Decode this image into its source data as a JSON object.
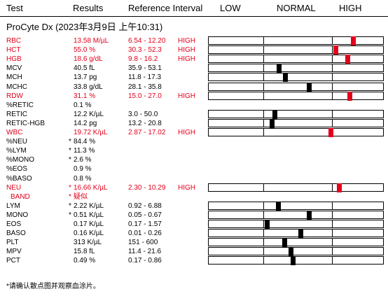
{
  "header": {
    "test": "Test",
    "results": "Results",
    "reference": "Reference Interval",
    "low": "LOW",
    "normal": "NORMAL",
    "high": "HIGH"
  },
  "title": "ProCyte Dx (2023年3月9日 上午10:31)",
  "rows": [
    {
      "test": "RBC",
      "star": "",
      "result": "13.58 M/µL",
      "ref": "6.54 - 12.20",
      "flag": "HIGH",
      "status": "high",
      "marker": 0.82
    },
    {
      "test": "HCT",
      "star": "",
      "result": "55.0 %",
      "ref": "30.3 - 52.3",
      "flag": "HIGH",
      "status": "high",
      "marker": 0.72
    },
    {
      "test": "HGB",
      "star": "",
      "result": "18.6 g/dL",
      "ref": "9.8 - 16.2",
      "flag": "HIGH",
      "status": "high",
      "marker": 0.79
    },
    {
      "test": "MCV",
      "star": "",
      "result": "40.5 fL",
      "ref": "35.9 - 53.1",
      "flag": "",
      "status": "normal",
      "marker": 0.4
    },
    {
      "test": "MCH",
      "star": "",
      "result": "13.7 pg",
      "ref": "11.8 - 17.3",
      "flag": "",
      "status": "normal",
      "marker": 0.435
    },
    {
      "test": "MCHC",
      "star": "",
      "result": "33.8 g/dL",
      "ref": "28.1 - 35.8",
      "flag": "",
      "status": "normal",
      "marker": 0.57
    },
    {
      "test": "RDW",
      "star": "",
      "result": "31.1 %",
      "ref": "15.0 - 27.0",
      "flag": "HIGH",
      "status": "high",
      "marker": 0.8
    },
    {
      "test": "%RETIC",
      "star": "",
      "result": "0.1 %",
      "ref": "",
      "flag": "",
      "status": "none",
      "marker": null
    },
    {
      "test": "RETIC",
      "star": "",
      "result": "12.2 K/µL",
      "ref": "3.0 - 50.0",
      "flag": "",
      "status": "normal",
      "marker": 0.375
    },
    {
      "test": "RETIC-HGB",
      "star": "",
      "result": "14.2 pg",
      "ref": "13.2 - 20.8",
      "flag": "",
      "status": "normal",
      "marker": 0.36
    },
    {
      "test": "WBC",
      "star": "",
      "result": "19.72 K/µL",
      "ref": "2.87 - 17.02",
      "flag": "HIGH",
      "status": "high",
      "marker": 0.695
    },
    {
      "test": "%NEU",
      "star": "*",
      "result": "84.4 %",
      "ref": "",
      "flag": "",
      "status": "none",
      "marker": null
    },
    {
      "test": "%LYM",
      "star": "*",
      "result": "11.3 %",
      "ref": "",
      "flag": "",
      "status": "none",
      "marker": null
    },
    {
      "test": "%MONO",
      "star": "*",
      "result": "2.6 %",
      "ref": "",
      "flag": "",
      "status": "none",
      "marker": null
    },
    {
      "test": "%EOS",
      "star": "",
      "result": "0.9 %",
      "ref": "",
      "flag": "",
      "status": "none",
      "marker": null
    },
    {
      "test": "%BASO",
      "star": "",
      "result": "0.8 %",
      "ref": "",
      "flag": "",
      "status": "none",
      "marker": null
    },
    {
      "test": "NEU",
      "star": "*",
      "result": "16.66 K/µL",
      "ref": "2.30 - 10.29",
      "flag": "HIGH",
      "status": "high",
      "marker": 0.74
    },
    {
      "test": "BAND",
      "star": "*",
      "result": "疑似",
      "ref": "",
      "flag": "",
      "status": "flagged",
      "marker": null
    },
    {
      "test": "LYM",
      "star": "*",
      "result": "2.22 K/µL",
      "ref": "0.92 - 6.88",
      "flag": "",
      "status": "normal",
      "marker": 0.395
    },
    {
      "test": "MONO",
      "star": "*",
      "result": "0.51 K/µL",
      "ref": "0.05 - 0.67",
      "flag": "",
      "status": "normal",
      "marker": 0.57
    },
    {
      "test": "EOS",
      "star": "",
      "result": "0.17 K/µL",
      "ref": "0.17 - 1.57",
      "flag": "",
      "status": "normal",
      "marker": 0.33
    },
    {
      "test": "BASO",
      "star": "",
      "result": "0.16 K/µL",
      "ref": "0.01 - 0.26",
      "flag": "",
      "status": "normal",
      "marker": 0.52
    },
    {
      "test": "PLT",
      "star": "",
      "result": "313 K/µL",
      "ref": "151 - 600",
      "flag": "",
      "status": "normal",
      "marker": 0.43
    },
    {
      "test": "MPV",
      "star": "",
      "result": "15.8 fL",
      "ref": "11.4 - 21.6",
      "flag": "",
      "status": "normal",
      "marker": 0.465
    },
    {
      "test": "PCT",
      "star": "",
      "result": "0.49 %",
      "ref": "0.17 - 0.86",
      "flag": "",
      "status": "normal",
      "marker": 0.48
    }
  ],
  "footnote": "*请确认散点图并观察血涂片。",
  "colors": {
    "high": "#e3001b",
    "normal": "#000000"
  }
}
